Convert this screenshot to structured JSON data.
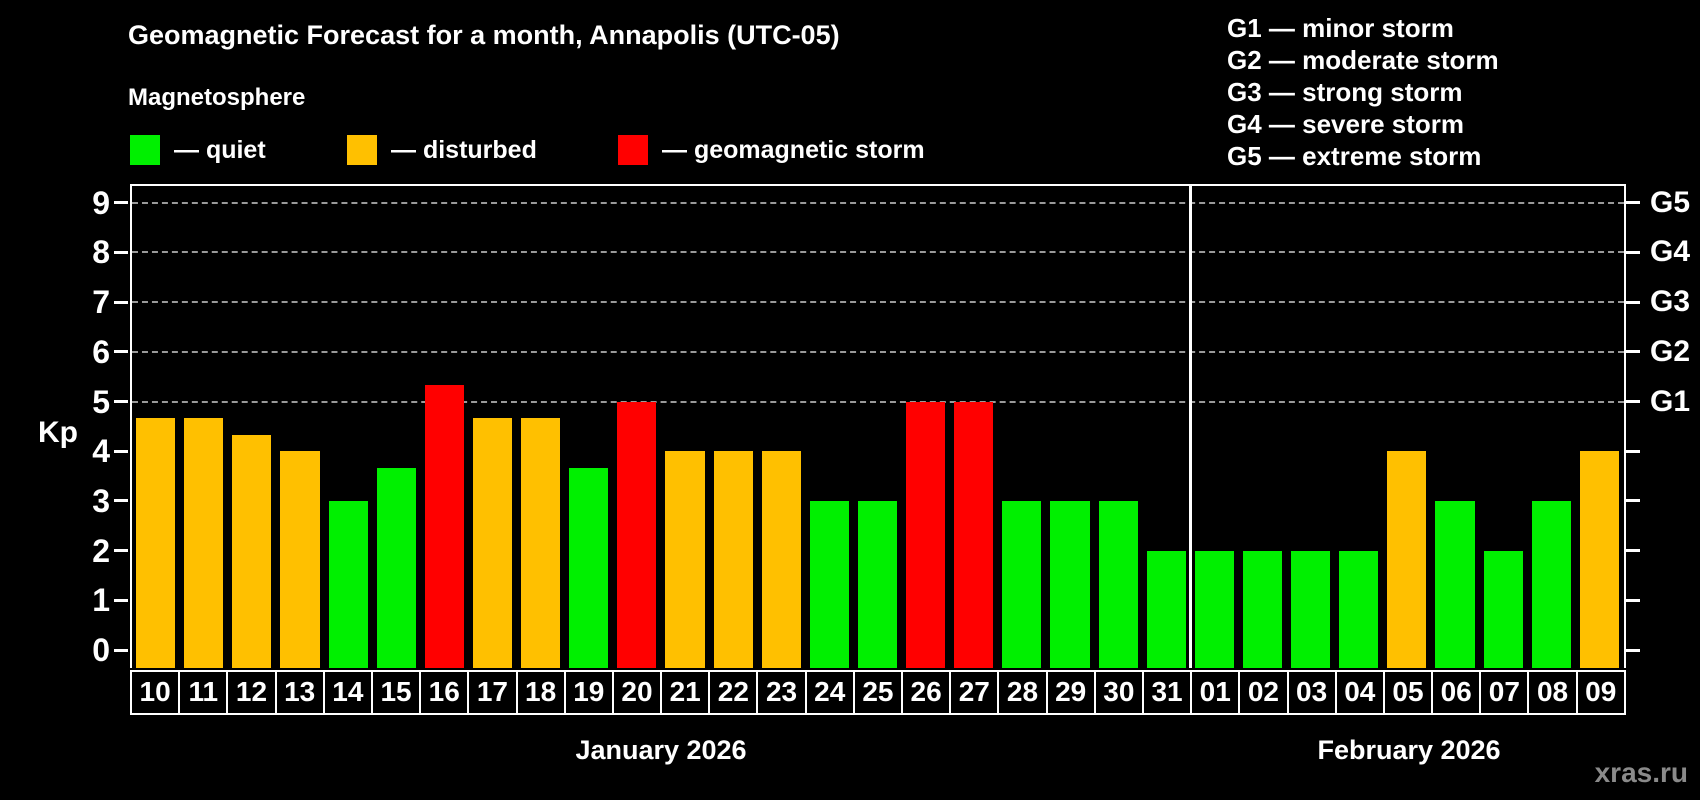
{
  "title": "Geomagnetic Forecast for a month, Annapolis (UTC-05)",
  "subtitle": "Magnetosphere",
  "legend": {
    "quiet": "— quiet",
    "disturbed": "— disturbed",
    "storm": "— geomagnetic storm"
  },
  "g_legend": [
    "G1 — minor storm",
    "G2 — moderate storm",
    "G3 — strong storm",
    "G4 — severe storm",
    "G5 — extreme storm"
  ],
  "axis": {
    "y_label": "Kp",
    "y_ticks": [
      0,
      1,
      2,
      3,
      4,
      5,
      6,
      7,
      8,
      9
    ],
    "right_labels": [
      {
        "kp": 5,
        "label": "G1"
      },
      {
        "kp": 6,
        "label": "G2"
      },
      {
        "kp": 7,
        "label": "G3"
      },
      {
        "kp": 8,
        "label": "G4"
      },
      {
        "kp": 9,
        "label": "G5"
      }
    ]
  },
  "months": [
    {
      "label": "January 2026",
      "days": 22
    },
    {
      "label": "February 2026",
      "days": 9
    }
  ],
  "watermark": "xras.ru",
  "colors": {
    "quiet": "#00f000",
    "disturbed": "#ffc000",
    "storm": "#ff0000",
    "grid": "#9a9a9a",
    "axis": "#ffffff",
    "watermark": "#8a8a8a"
  },
  "chart_data": {
    "type": "bar",
    "title": "Geomagnetic Forecast for a month, Annapolis (UTC-05)",
    "xlabel": "",
    "ylabel": "Kp",
    "ylim": [
      0,
      9.4
    ],
    "grid": "dashed horizontal at Kp 5-9 only",
    "gridlines_at": [
      5,
      6,
      7,
      8,
      9
    ],
    "separator_after_index": 21,
    "categories": [
      "10",
      "11",
      "12",
      "13",
      "14",
      "15",
      "16",
      "17",
      "18",
      "19",
      "20",
      "21",
      "22",
      "23",
      "24",
      "25",
      "26",
      "27",
      "28",
      "29",
      "30",
      "31",
      "01",
      "02",
      "03",
      "04",
      "05",
      "06",
      "07",
      "08",
      "09"
    ],
    "values": [
      4.67,
      4.67,
      4.33,
      4,
      3,
      3.67,
      5.33,
      4.67,
      4.67,
      3.67,
      5,
      4,
      4,
      4,
      3,
      3,
      5,
      5,
      3,
      3,
      3,
      2,
      2,
      2,
      2,
      2,
      4,
      3,
      2,
      3,
      4
    ],
    "statuses": [
      "disturbed",
      "disturbed",
      "disturbed",
      "disturbed",
      "quiet",
      "quiet",
      "storm",
      "disturbed",
      "disturbed",
      "quiet",
      "storm",
      "disturbed",
      "disturbed",
      "disturbed",
      "quiet",
      "quiet",
      "storm",
      "storm",
      "quiet",
      "quiet",
      "quiet",
      "quiet",
      "quiet",
      "quiet",
      "quiet",
      "quiet",
      "disturbed",
      "quiet",
      "quiet",
      "quiet",
      "disturbed"
    ],
    "legend_entries": [
      "quiet",
      "disturbed",
      "geomagnetic storm"
    ],
    "legend_position": "top-left"
  }
}
